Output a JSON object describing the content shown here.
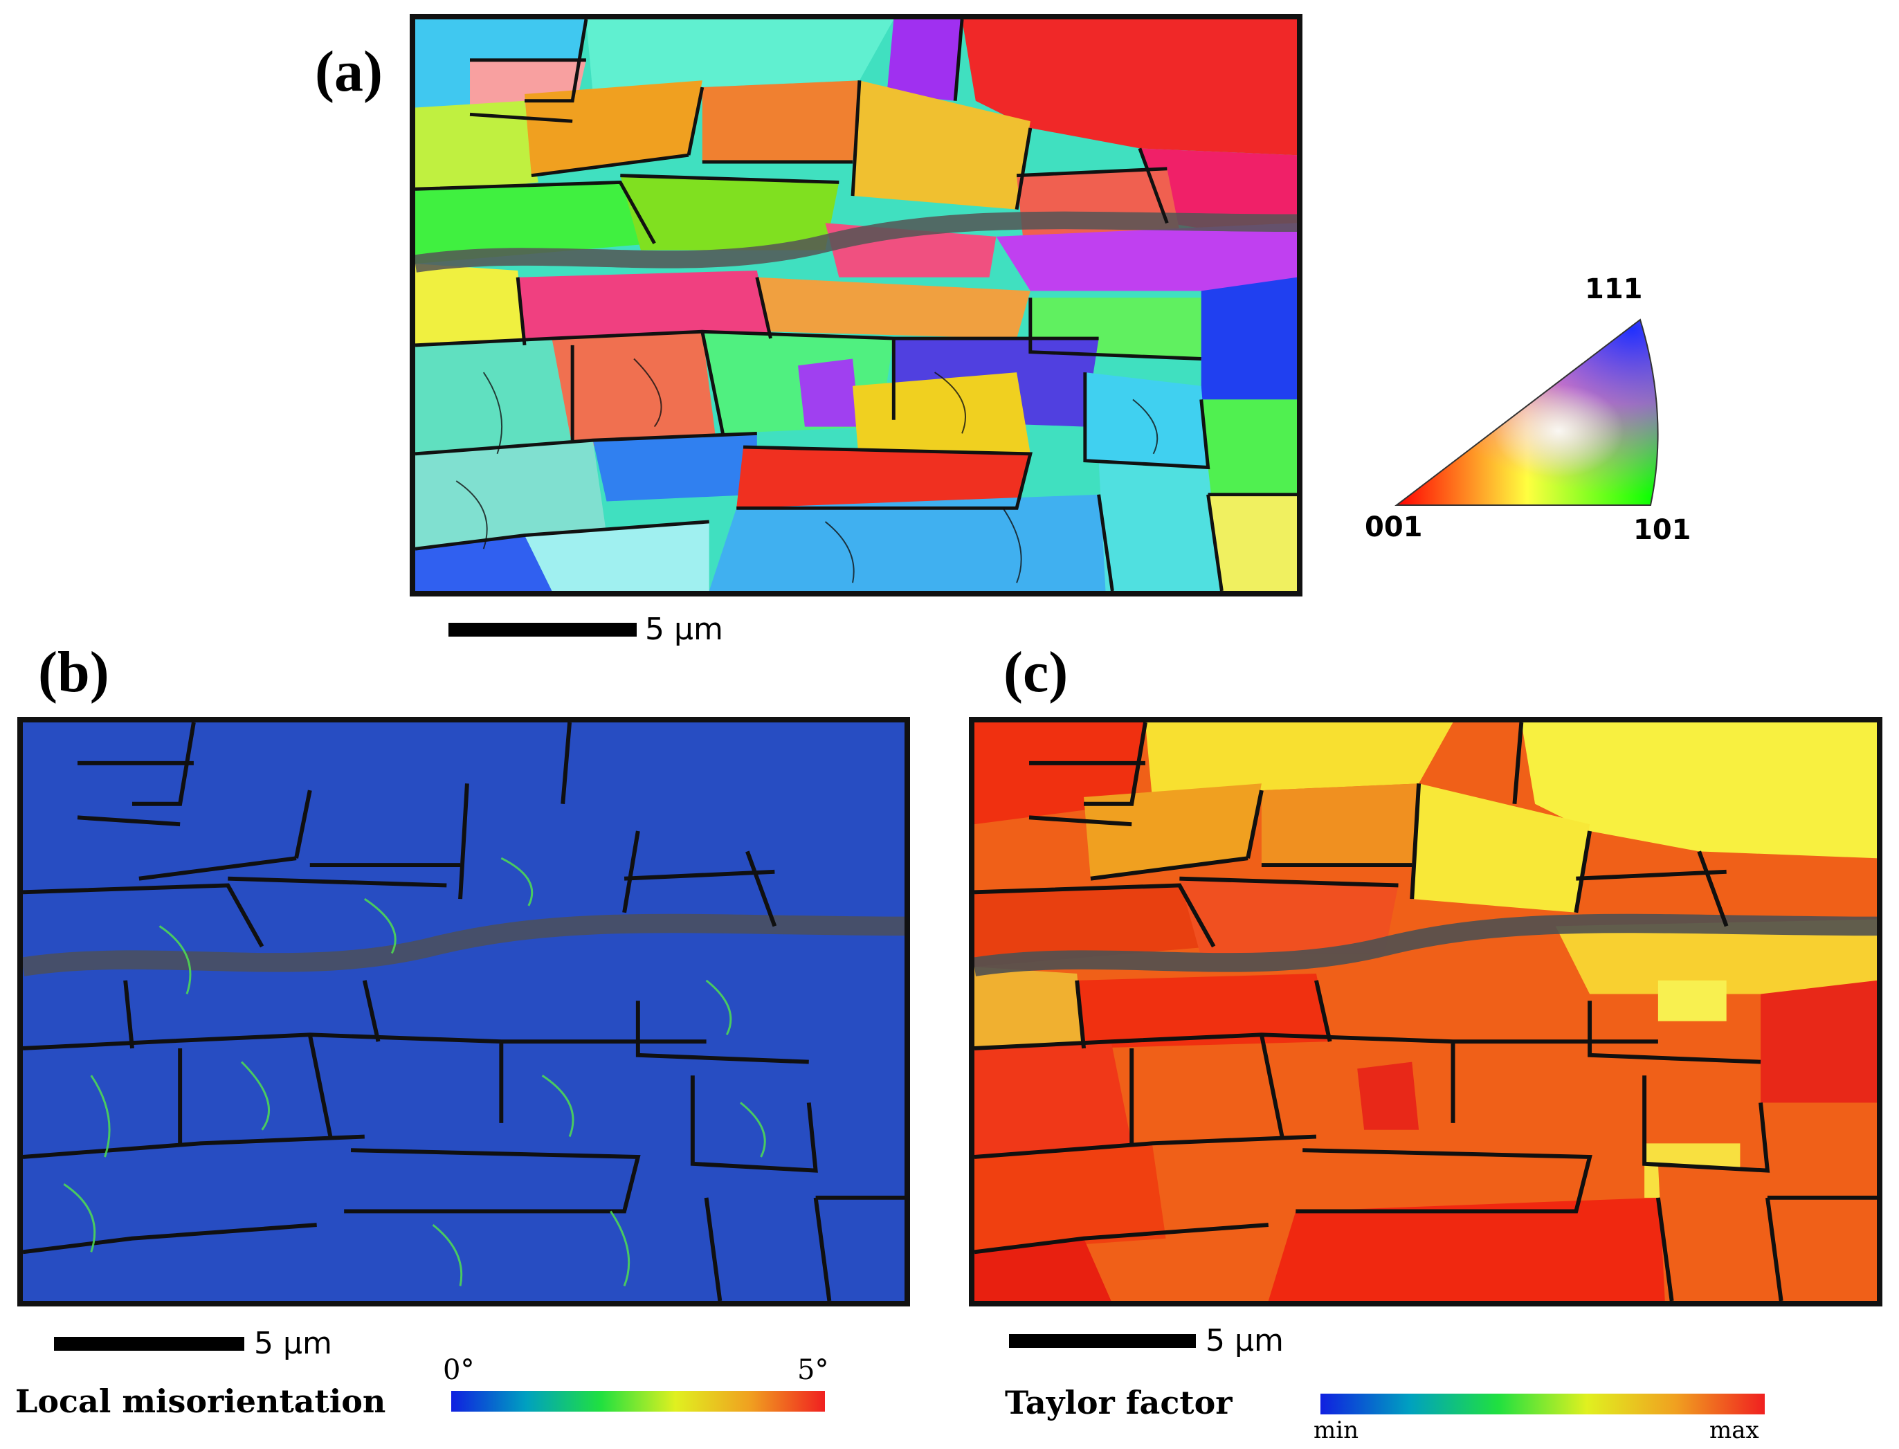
{
  "panels": {
    "a": {
      "label": "(a)",
      "scale_label": "5 μm"
    },
    "b": {
      "label": "(b)",
      "scale_label": "5 μm"
    },
    "c": {
      "label": "(c)",
      "scale_label": "5 μm"
    }
  },
  "ipf_legend": {
    "corner_111": "111",
    "corner_001": "001",
    "corner_101": "101"
  },
  "misorientation_legend": {
    "title": "Local misorientation",
    "min_label": "0°",
    "max_label": "5°"
  },
  "taylor_legend": {
    "title": "Taylor factor",
    "min_label": "min",
    "max_label": "max"
  },
  "colors": {
    "misorientation_bg": "#2a52c8",
    "taylor_bg": "#f06018",
    "grain_boundary": "#111111",
    "crack_band": "#555555"
  }
}
